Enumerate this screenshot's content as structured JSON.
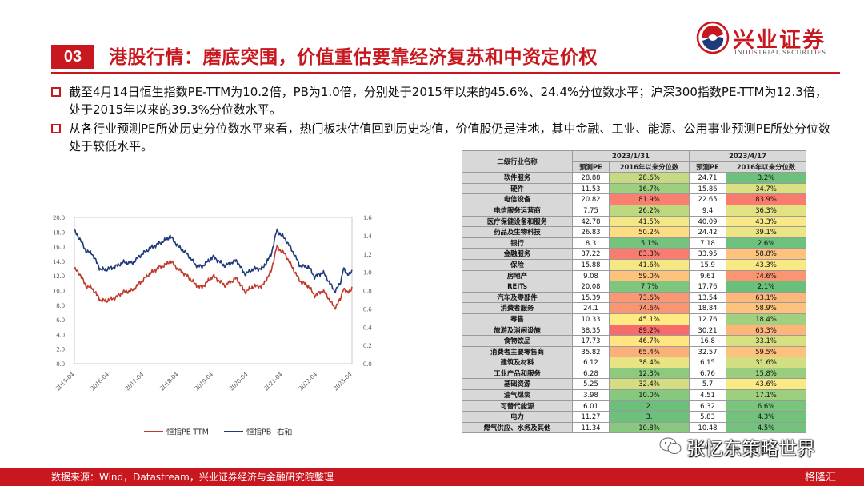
{
  "header": {
    "section_number": "03",
    "title": "港股行情：磨底突围，价值重估要靠经济复苏和中资定价权",
    "brand_cn": "兴业证券",
    "brand_en": "INDUSTRIAL SECURITIES"
  },
  "bullets": [
    "截至4月14日恒生指数PE-TTM为10.2倍，PB为1.0倍，分别处于2015年以来的45.6%、24.4%分位数水平；沪深300指数PE-TTM为12.3倍，处于2015年以来的39.3%分位数水平。",
    "从各行业预测PE所处历史分位数水平来看，热门板块估值回到历史均值，价值股仍是洼地，其中金融、工业、能源、公用事业预测PE所处分位数处于较低水平。"
  ],
  "chart_data": {
    "type": "line",
    "x_ticks": [
      "2015-04",
      "2016-04",
      "2017-04",
      "2018-04",
      "2019-04",
      "2020-04",
      "2021-04",
      "2022-04",
      "2023-04"
    ],
    "left_axis": {
      "ticks": [
        "20.0",
        "18.0",
        "16.0",
        "14.0",
        "12.0",
        "10.0",
        "8.0",
        "6.0",
        "4.0",
        "2.0",
        "0.0"
      ],
      "ylim": [
        0,
        20
      ]
    },
    "right_axis": {
      "ticks": [
        "1.6",
        "1.4",
        "1.2",
        "1.0",
        "0.8",
        "0.6",
        "0.4",
        "0.2",
        "0.0"
      ],
      "ylim": [
        0,
        1.6
      ]
    },
    "series": [
      {
        "name": "恒指PE-TTM",
        "axis": "left",
        "color": "#c0392b",
        "x": [
          "2015-04",
          "2015-06",
          "2015-08",
          "2015-10",
          "2016-01",
          "2016-03",
          "2016-06",
          "2016-09",
          "2016-12",
          "2017-03",
          "2017-06",
          "2017-09",
          "2017-12",
          "2018-01",
          "2018-04",
          "2018-07",
          "2018-10",
          "2018-12",
          "2019-04",
          "2019-08",
          "2019-12",
          "2020-03",
          "2020-06",
          "2020-09",
          "2020-12",
          "2021-02",
          "2021-05",
          "2021-08",
          "2021-10",
          "2022-01",
          "2022-03",
          "2022-06",
          "2022-08",
          "2022-10",
          "2022-12",
          "2023-01",
          "2023-02",
          "2023-04"
        ],
        "values": [
          13.0,
          12.2,
          10.6,
          10.4,
          8.7,
          8.6,
          9.0,
          9.8,
          10.0,
          11.2,
          12.3,
          13.1,
          13.6,
          14.1,
          12.9,
          12.0,
          10.8,
          10.4,
          12.0,
          10.7,
          11.7,
          9.8,
          10.6,
          10.6,
          12.6,
          16.0,
          14.9,
          12.7,
          11.3,
          10.6,
          9.3,
          10.0,
          8.9,
          7.6,
          8.8,
          10.4,
          9.7,
          10.2
        ]
      },
      {
        "name": "恒指PB--右轴",
        "axis": "right",
        "color": "#1f3a78",
        "x": [
          "2015-04",
          "2015-06",
          "2015-08",
          "2015-10",
          "2016-01",
          "2016-03",
          "2016-06",
          "2016-09",
          "2016-12",
          "2017-03",
          "2017-06",
          "2017-09",
          "2017-12",
          "2018-01",
          "2018-04",
          "2018-07",
          "2018-10",
          "2018-12",
          "2019-04",
          "2019-08",
          "2019-12",
          "2020-03",
          "2020-06",
          "2020-09",
          "2020-12",
          "2021-02",
          "2021-05",
          "2021-08",
          "2021-10",
          "2022-01",
          "2022-03",
          "2022-06",
          "2022-08",
          "2022-10",
          "2022-12",
          "2023-01",
          "2023-02",
          "2023-04"
        ],
        "values": [
          1.45,
          1.36,
          1.23,
          1.21,
          1.03,
          1.03,
          1.06,
          1.11,
          1.1,
          1.19,
          1.26,
          1.31,
          1.36,
          1.4,
          1.28,
          1.2,
          1.08,
          1.06,
          1.17,
          1.07,
          1.13,
          0.98,
          1.04,
          1.04,
          1.19,
          1.46,
          1.36,
          1.2,
          1.07,
          1.06,
          0.95,
          1.0,
          0.9,
          0.79,
          0.88,
          1.05,
          0.98,
          1.0
        ]
      }
    ]
  },
  "table": {
    "header_industry": "二级行业名称",
    "dates": [
      "2023/1/31",
      "2023/4/17"
    ],
    "col_pe": "预测PE",
    "col_pct": "2016年以来分位数",
    "rows": [
      {
        "name": "软件服务",
        "pe1": "28.88",
        "p1": "28.6%",
        "pe2": "24.71",
        "p2": "3.2%"
      },
      {
        "name": "硬件",
        "pe1": "11.53",
        "p1": "16.7%",
        "pe2": "15.86",
        "p2": "34.7%"
      },
      {
        "name": "电信设备",
        "pe1": "20.82",
        "p1": "81.9%",
        "pe2": "22.65",
        "p2": "83.9%"
      },
      {
        "name": "电信服务运营商",
        "pe1": "7.75",
        "p1": "26.2%",
        "pe2": "9.4",
        "p2": "36.3%"
      },
      {
        "name": "医疗保健设备和服务",
        "pe1": "42.78",
        "p1": "41.5%",
        "pe2": "40.09",
        "p2": "43.3%"
      },
      {
        "name": "药品及生物科技",
        "pe1": "26.83",
        "p1": "50.2%",
        "pe2": "24.42",
        "p2": "39.1%"
      },
      {
        "name": "银行",
        "pe1": "8.3",
        "p1": "5.1%",
        "pe2": "7.18",
        "p2": "2.6%"
      },
      {
        "name": "金融服务",
        "pe1": "37.22",
        "p1": "83.3%",
        "pe2": "33.95",
        "p2": "58.8%"
      },
      {
        "name": "保险",
        "pe1": "15.88",
        "p1": "41.6%",
        "pe2": "15.9",
        "p2": "43.3%"
      },
      {
        "name": "房地产",
        "pe1": "9.08",
        "p1": "59.0%",
        "pe2": "9.61",
        "p2": "74.6%"
      },
      {
        "name": "REITs",
        "pe1": "20.08",
        "p1": "7.7%",
        "pe2": "17.76",
        "p2": "2.1%"
      },
      {
        "name": "汽车及零部件",
        "pe1": "15.39",
        "p1": "73.6%",
        "pe2": "13.54",
        "p2": "63.1%"
      },
      {
        "name": "消费者服务",
        "pe1": "24.1",
        "p1": "74.6%",
        "pe2": "18.84",
        "p2": "58.9%"
      },
      {
        "name": "零售",
        "pe1": "10.33",
        "p1": "45.1%",
        "pe2": "12.76",
        "p2": "18.4%"
      },
      {
        "name": "旅游及消闲设施",
        "pe1": "38.35",
        "p1": "89.2%",
        "pe2": "30.21",
        "p2": "63.3%"
      },
      {
        "name": "食物饮品",
        "pe1": "17.73",
        "p1": "46.7%",
        "pe2": "16.8",
        "p2": "33.1%"
      },
      {
        "name": "消费者主要零售商",
        "pe1": "35.82",
        "p1": "65.4%",
        "pe2": "32.57",
        "p2": "59.5%"
      },
      {
        "name": "建筑及材料",
        "pe1": "6.12",
        "p1": "38.4%",
        "pe2": "6.15",
        "p2": "31.6%"
      },
      {
        "name": "工业产品和服务",
        "pe1": "6.28",
        "p1": "12.3%",
        "pe2": "6.76",
        "p2": "15.8%"
      },
      {
        "name": "基础资源",
        "pe1": "5.25",
        "p1": "32.4%",
        "pe2": "5.7",
        "p2": "43.6%"
      },
      {
        "name": "油气煤炭",
        "pe1": "3.98",
        "p1": "10.0%",
        "pe2": "4.51",
        "p2": "17.1%"
      },
      {
        "name": "可替代能源",
        "pe1": "6.01",
        "p1": "2.",
        "pe2": "6.32",
        "p2": "6.6%"
      },
      {
        "name": "电力",
        "pe1": "11.27",
        "p1": "3.",
        "pe2": "5.83",
        "p2": "4.3%"
      },
      {
        "name": "燃气供应、水务及其他",
        "pe1": "11.34",
        "p1": "10.8%",
        "pe2": "10.48",
        "p2": "4.5%"
      }
    ]
  },
  "footer": {
    "source": "数据来源：Wind，Datastream，兴业证券经济与金融研究院整理"
  },
  "watermark": {
    "text": "张忆东策略世界",
    "icon": "wechat-icon",
    "logo_text": "格隆汇"
  },
  "colors": {
    "brand_red": "#c8171e",
    "pe_line": "#c0392b",
    "pb_line": "#1f3a78"
  }
}
